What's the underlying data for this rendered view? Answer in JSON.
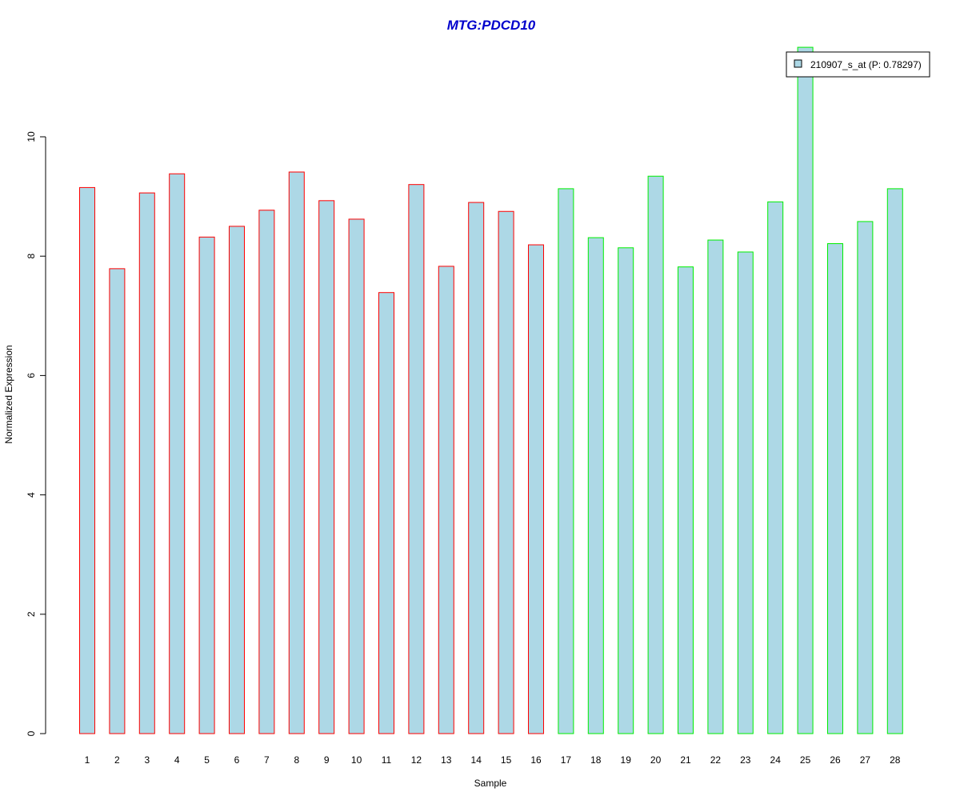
{
  "chart_data": {
    "type": "bar",
    "title": "MTG:PDCD10",
    "xlabel": "Sample",
    "ylabel": "Normalized Expression",
    "ylim": [
      0,
      11.5
    ],
    "y_ticks": [
      "0",
      "2",
      "4",
      "6",
      "8",
      "10"
    ],
    "grid": false,
    "legend_position": "top-right",
    "categories": [
      "1",
      "2",
      "3",
      "4",
      "5",
      "6",
      "7",
      "8",
      "9",
      "10",
      "11",
      "12",
      "13",
      "14",
      "15",
      "16",
      "17",
      "18",
      "19",
      "20",
      "21",
      "22",
      "23",
      "24",
      "25",
      "26",
      "27",
      "28"
    ],
    "series": [
      {
        "name": "210907_s_at (P: 0.78297)",
        "values": [
          9.15,
          7.79,
          9.06,
          9.38,
          8.32,
          8.5,
          8.77,
          9.41,
          8.93,
          8.62,
          7.39,
          9.2,
          7.83,
          8.9,
          8.75,
          8.19,
          9.13,
          8.31,
          8.14,
          9.34,
          7.82,
          8.27,
          8.07,
          8.91,
          11.5,
          8.21,
          8.58,
          9.13
        ]
      }
    ],
    "groups": [
      {
        "samples_from": 1,
        "samples_to": 16,
        "border_color": "#ff0000"
      },
      {
        "samples_from": 17,
        "samples_to": 28,
        "border_color": "#00ee00"
      }
    ],
    "colors": {
      "bar_fill": "#add8e6",
      "title": "#0000cc",
      "legend_swatch": "#add8e6"
    }
  }
}
